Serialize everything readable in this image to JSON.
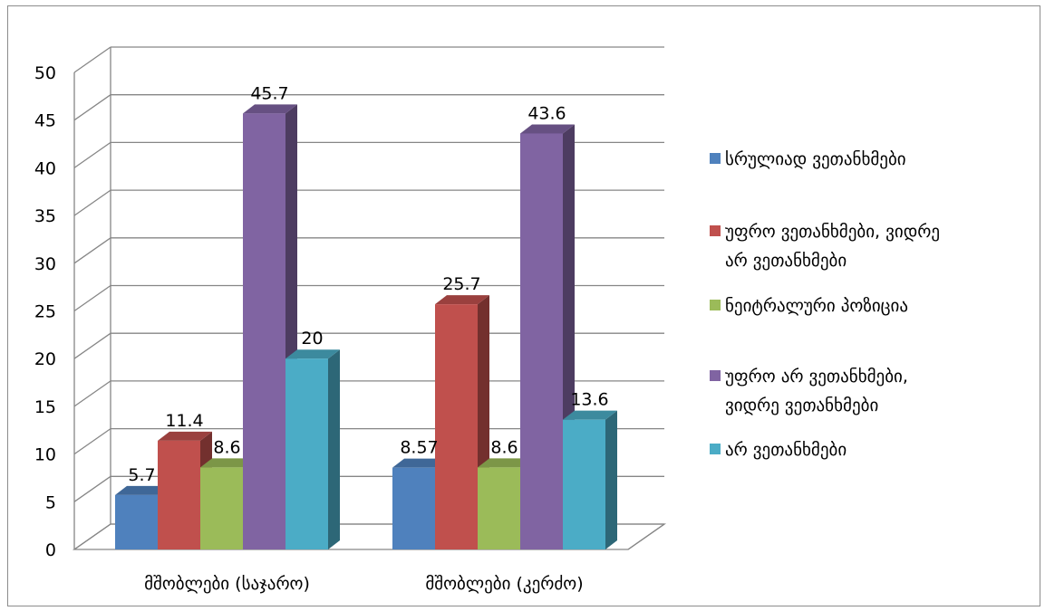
{
  "chart_data": {
    "type": "bar",
    "style": "3d-clustered-column",
    "categories": [
      "მშობლები (საჯარო)",
      "მშობლები (კერძო)"
    ],
    "series": [
      {
        "name": "სრულიად ვეთანხმები",
        "values": [
          5.7,
          8.57
        ],
        "labels": [
          "5.7",
          "8.57"
        ],
        "color": "#4f81bd"
      },
      {
        "name": "უფრო  ვეთანხმები, ვიდრე არ ვეთანხმები",
        "values": [
          11.4,
          25.7
        ],
        "labels": [
          "11.4",
          "25.7"
        ],
        "color": "#c0504d"
      },
      {
        "name": "ნეიტრალური პოზიცია",
        "values": [
          8.6,
          8.6
        ],
        "labels": [
          "8.6",
          "8.6"
        ],
        "color": "#9bbb59"
      },
      {
        "name": "უფრო არ ვეთანხმები, ვიდრე ვეთანხმები",
        "values": [
          45.7,
          43.6
        ],
        "labels": [
          "45.7",
          "43.6"
        ],
        "color": "#8064a2"
      },
      {
        "name": "არ ვეთანხმები",
        "values": [
          20,
          13.6
        ],
        "labels": [
          "20",
          "13.6"
        ],
        "color": "#4bacc6"
      }
    ],
    "ylim": [
      0,
      50
    ],
    "yticks": [
      0,
      5,
      10,
      15,
      20,
      25,
      30,
      35,
      40,
      45,
      50
    ],
    "grid": true,
    "legend": "right",
    "legend_lines": [
      [
        "სრულიად ვეთანხმები"
      ],
      [
        "უფრო  ვეთანხმები, ვიდრე",
        "არ ვეთანხმები"
      ],
      [
        "ნეიტრალური პოზიცია"
      ],
      [
        "უფრო არ ვეთანხმები,",
        "ვიდრე ვეთანხმები"
      ],
      [
        "არ ვეთანხმები"
      ]
    ]
  }
}
